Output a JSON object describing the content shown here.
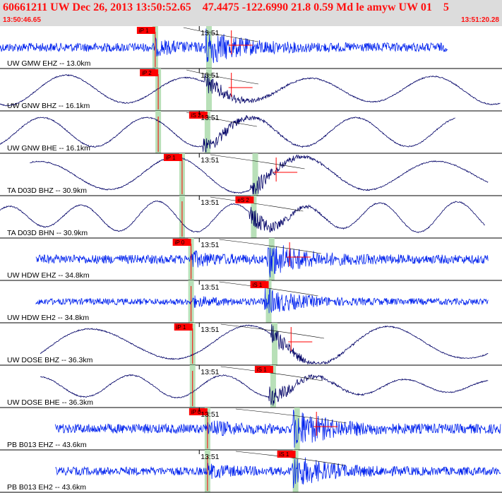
{
  "header": {
    "title": "60661211 UW Dec 26, 2013 13:50:52.65    47.4475 -122.6990 21.8 0.59 Md le amyw UW 01    5",
    "start_time": "13:50:46.65",
    "end_time": "13:51:20.28"
  },
  "colors": {
    "broadband": "#000066",
    "short_period": "#0022ee",
    "pick_box": "#ff0000",
    "pick_window": "#b8e0b8",
    "header_bg": "#dcdcdc",
    "header_text": "#ff1010"
  },
  "chart_data": {
    "type": "line",
    "title": "60661211 UW Dec 26, 2013 13:50:52.65    47.4475 -122.6990 21.8 0.59 Md le amyw UW 01    5",
    "xlim": [
      "13:50:46.65",
      "13:51:20.28"
    ],
    "tick_label": "13:51",
    "grid": false,
    "traces": [
      {
        "label": "UW GMW EHZ -- 13.0km",
        "pick": "iP 1",
        "kind": "short",
        "t0": 0.0,
        "t1": 30.0,
        "p": 10.4,
        "s": 14.0,
        "mark": 15.5,
        "amp": 14,
        "freq": 6,
        "period": 0
      },
      {
        "label": "UW GNW BHZ -- 16.1km",
        "pick": "iP 2",
        "kind": "long",
        "t0": 0.0,
        "t1": 33.6,
        "p": 10.6,
        "s": 14.0,
        "mark": 15.5,
        "amp": 20,
        "freq": 0,
        "period": 8
      },
      {
        "label": "UW GNW BHE -- 16.1km",
        "pick": "iS 2",
        "kind": "long",
        "t0": 0.0,
        "t1": 30.5,
        "p": 10.6,
        "s": 13.9,
        "mark": 0,
        "amp": 22,
        "freq": 0,
        "period": 7
      },
      {
        "label": "TA D03D BHZ -- 30.9km",
        "pick": "iP 1",
        "kind": "long",
        "t0": 2.0,
        "t1": 32.7,
        "p": 12.2,
        "s": 17.1,
        "mark": 18.5,
        "amp": 22,
        "freq": 0,
        "period": 9
      },
      {
        "label": "TA D03D BHN -- 30.9km",
        "pick": "eS 2",
        "kind": "long",
        "t0": 0.0,
        "t1": 32.5,
        "p": 12.2,
        "s": 17.0,
        "mark": 0,
        "amp": 18,
        "freq": 0,
        "period": 5
      },
      {
        "label": "UW HDW EHZ -- 34.8km",
        "pick": "iP 0",
        "kind": "short",
        "t0": 2.4,
        "t1": 32.7,
        "p": 12.8,
        "s": 18.2,
        "mark": 19.4,
        "amp": 14,
        "freq": 6,
        "period": 0
      },
      {
        "label": "UW HDW EH2 -- 34.8km",
        "pick": "iS 1",
        "kind": "short",
        "t0": 2.4,
        "t1": 32.7,
        "p": 12.8,
        "s": 18.0,
        "mark": 0,
        "amp": 10,
        "freq": 6,
        "period": 0
      },
      {
        "label": "UW DOSE BHZ -- 36.3km",
        "pick": "iP 1",
        "kind": "long",
        "t0": 2.7,
        "t1": 32.7,
        "p": 12.9,
        "s": 18.4,
        "mark": 19.5,
        "amp": 24,
        "freq": 0,
        "period": 10
      },
      {
        "label": "UW DOSE BHE -- 36.3km",
        "pick": "iS 1",
        "kind": "long",
        "t0": 2.7,
        "t1": 32.7,
        "p": 12.9,
        "s": 18.3,
        "mark": 0,
        "amp": 12,
        "freq": 0,
        "period": 6
      },
      {
        "label": "PB B013 EHZ -- 43.6km",
        "pick": "iP 0",
        "kind": "short",
        "t0": 3.7,
        "t1": 33.6,
        "p": 13.9,
        "s": 19.9,
        "mark": 21.2,
        "amp": 15,
        "freq": 6,
        "period": 0
      },
      {
        "label": "PB B013 EH2 -- 43.6km",
        "pick": "iS 1",
        "kind": "short",
        "t0": 3.7,
        "t1": 33.6,
        "p": 13.9,
        "s": 19.8,
        "mark": 0,
        "amp": 13,
        "freq": 6,
        "period": 0
      }
    ]
  }
}
